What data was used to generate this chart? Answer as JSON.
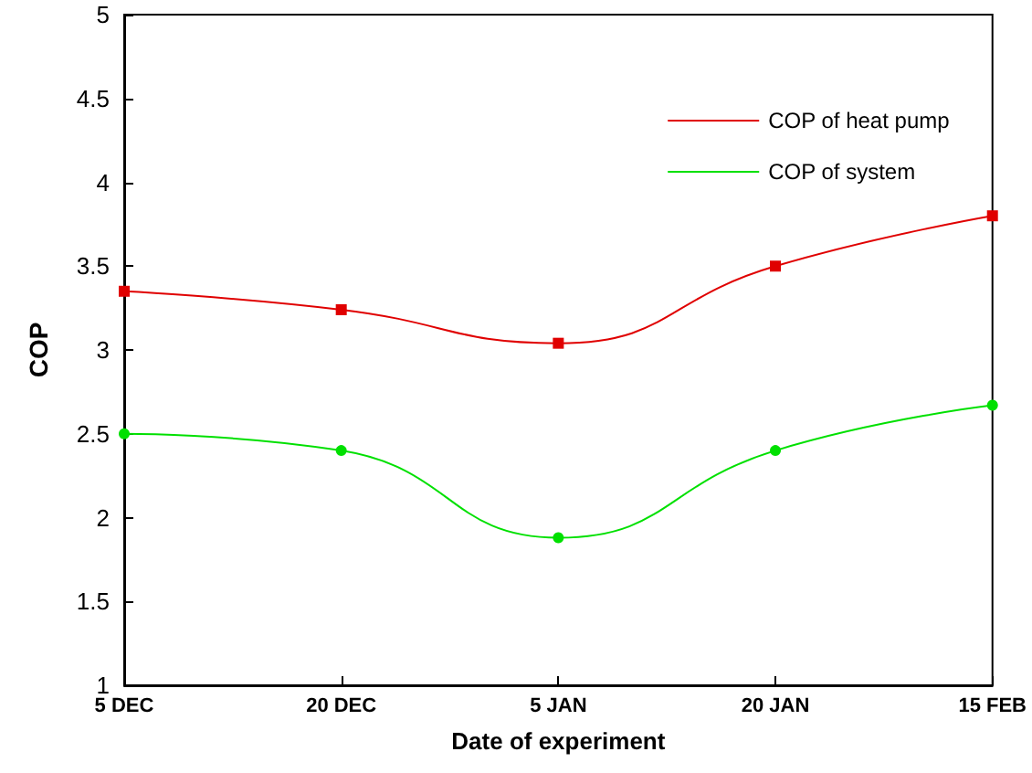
{
  "chart_data": {
    "type": "line",
    "xlabel": "Date of experiment",
    "ylabel": "COP",
    "categories": [
      "5 DEC",
      "20 DEC",
      "5 JAN",
      "20 JAN",
      "15 FEB"
    ],
    "series": [
      {
        "name": "COP of heat pump",
        "color": "#e00000",
        "marker": "square",
        "values": [
          3.35,
          3.24,
          3.04,
          3.5,
          3.8
        ]
      },
      {
        "name": "COP of system",
        "color": "#00e000",
        "marker": "circle",
        "values": [
          2.5,
          2.4,
          1.88,
          2.4,
          2.67
        ]
      }
    ],
    "ylim": [
      1,
      5
    ],
    "yticks": [
      1,
      1.5,
      2,
      2.5,
      3,
      3.5,
      4,
      4.5,
      5
    ],
    "grid": false,
    "legend": "top right",
    "line_style": "solid"
  }
}
